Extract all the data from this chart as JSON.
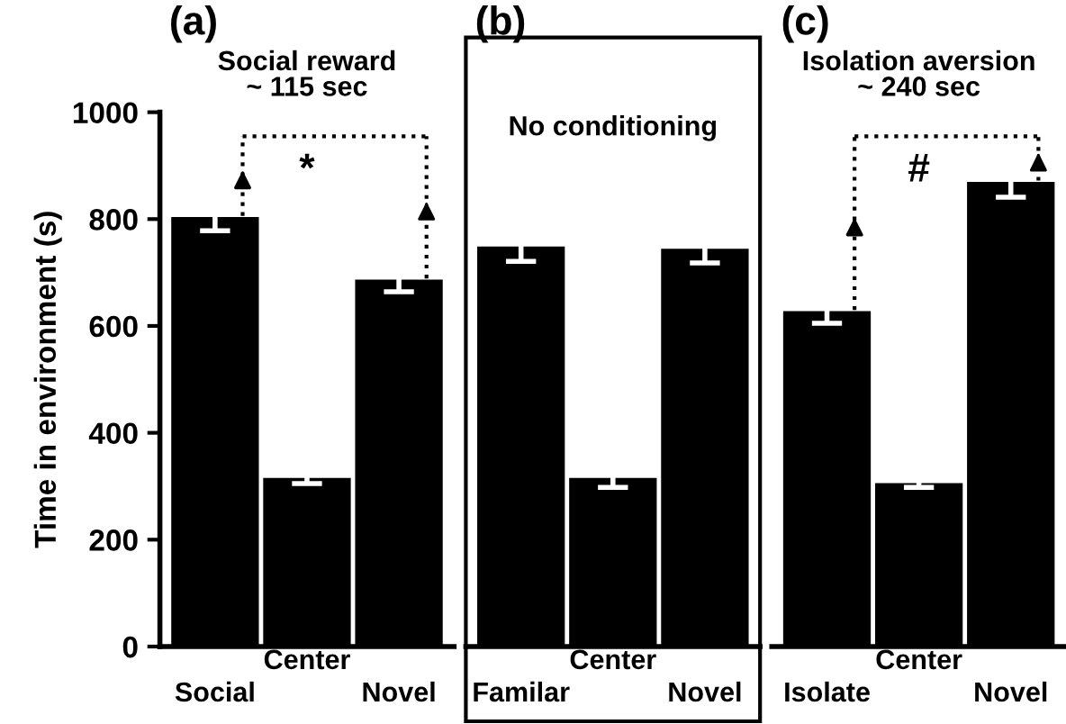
{
  "chart_data": [
    {
      "type": "bar",
      "ylabel": "Time in environment (s)",
      "categories": [
        "Social",
        "Center",
        "Novel"
      ],
      "values": [
        806,
        318,
        689
      ],
      "errors": [
        28,
        13,
        25
      ],
      "color": "#000000",
      "ylim": [
        0,
        1000
      ],
      "yticks": [
        0,
        200,
        400,
        600,
        800,
        1000
      ],
      "annotations": [
        "(a)",
        "Social reward\n~ 115 sec",
        "*"
      ]
    },
    {
      "type": "bar",
      "categories": [
        "Familar",
        "Center",
        "Novel"
      ],
      "values": [
        751,
        318,
        747
      ],
      "errors": [
        30,
        20,
        29
      ],
      "color": "#000000",
      "ylim": [
        0,
        1000
      ],
      "tick_labels": "x",
      "annotations": [
        "(b)",
        "No conditioning"
      ]
    },
    {
      "type": "bar",
      "categories": [
        "Isolate",
        "Center",
        "Novel"
      ],
      "values": [
        630,
        308,
        872
      ],
      "errors": [
        25,
        10,
        31
      ],
      "color": "#000000",
      "ylim": [
        0,
        1000
      ],
      "tick_labels": "x",
      "annotations": [
        "(c)",
        "Isolation aversion\n~ 240 sec",
        "#"
      ]
    }
  ]
}
